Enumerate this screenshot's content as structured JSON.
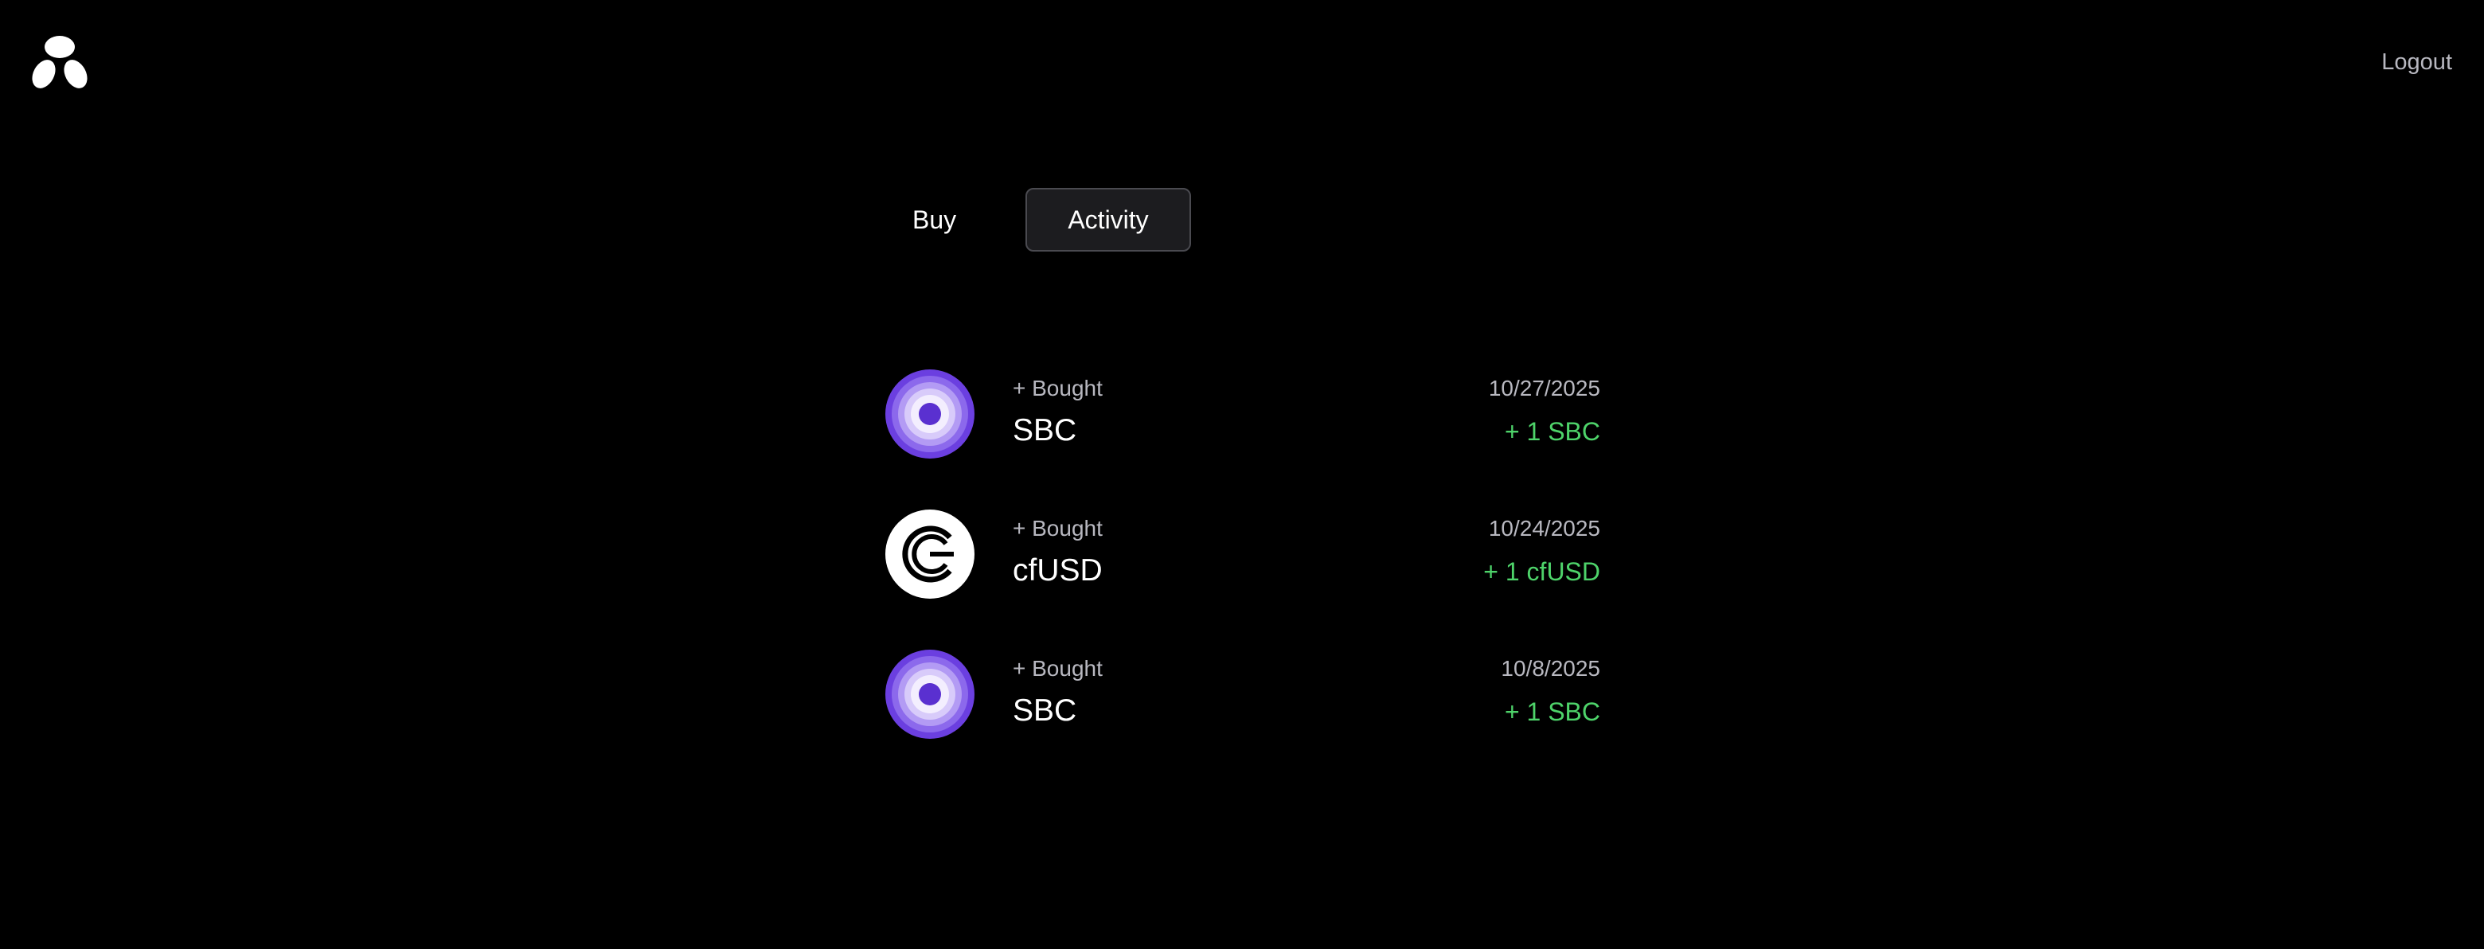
{
  "header": {
    "logo_icon": "trefoil-logo-icon",
    "logout_label": "Logout"
  },
  "tabs": [
    {
      "label": "Buy",
      "active": false
    },
    {
      "label": "Activity",
      "active": true
    }
  ],
  "activity": [
    {
      "action": "+ Bought",
      "token": "SBC",
      "date": "10/27/2025",
      "amount": "+ 1 SBC",
      "icon": "sbc-token-icon"
    },
    {
      "action": "+ Bought",
      "token": "cfUSD",
      "date": "10/24/2025",
      "amount": "+ 1 cfUSD",
      "icon": "cfusd-token-icon"
    },
    {
      "action": "+ Bought",
      "token": "SBC",
      "date": "10/8/2025",
      "amount": "+ 1 SBC",
      "icon": "sbc-token-icon"
    }
  ],
  "colors": {
    "background": "#000000",
    "muted_text": "#b8b8c0",
    "positive_amount": "#4ed36a",
    "sbc_purple": "#6a3fd6",
    "active_tab_bg": "#1c1c1f"
  }
}
